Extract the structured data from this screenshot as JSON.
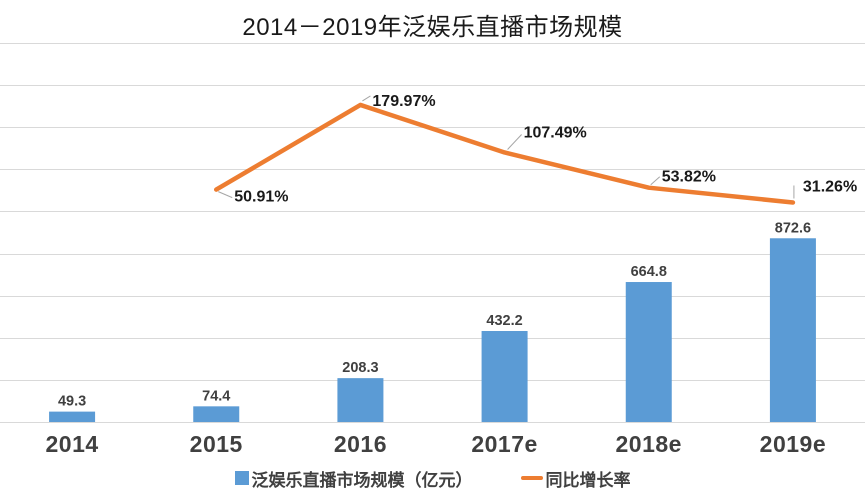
{
  "chart_data": {
    "type": "combo_bar_line",
    "title": "2014－2019年泛娱乐直播市场规模",
    "categories": [
      "2014",
      "2015",
      "2016",
      "2017e",
      "2018e",
      "2019e"
    ],
    "series": [
      {
        "name": "泛娱乐直播市场规模（亿元）",
        "type": "bar",
        "color": "#5B9BD5",
        "values": [
          49.3,
          74.4,
          208.3,
          432.2,
          664.8,
          872.6
        ],
        "data_labels": [
          "49.3",
          "74.4",
          "208.3",
          "432.2",
          "664.8",
          "872.6"
        ]
      },
      {
        "name": "同比增长率",
        "type": "line",
        "color": "#ED7D31",
        "values": [
          null,
          50.91,
          179.97,
          107.49,
          53.82,
          31.26
        ],
        "data_labels": [
          null,
          "50.91%",
          "179.97%",
          "107.49%",
          "53.82%",
          "31.26%"
        ]
      }
    ],
    "xlabel": "",
    "ylabel": "",
    "bar_axis": {
      "min": 0,
      "max": 1800,
      "labels_visible": false
    },
    "line_axis": {
      "labels_visible": false
    },
    "grid": true,
    "gridline_count": 10,
    "legend_position": "bottom"
  },
  "legend": {
    "bar_label": "泛娱乐直播市场规模（亿元）",
    "line_label": "同比增长率"
  },
  "colors": {
    "bar": "#5B9BD5",
    "line": "#ED7D31",
    "gridline": "#D9D9D9",
    "data_label": "#404040",
    "axis_label": "#404040",
    "pct_label": "#1A1A1A",
    "leader": "#A6A6A6",
    "title": "#1A1A1A",
    "background": "#FFFFFF"
  }
}
